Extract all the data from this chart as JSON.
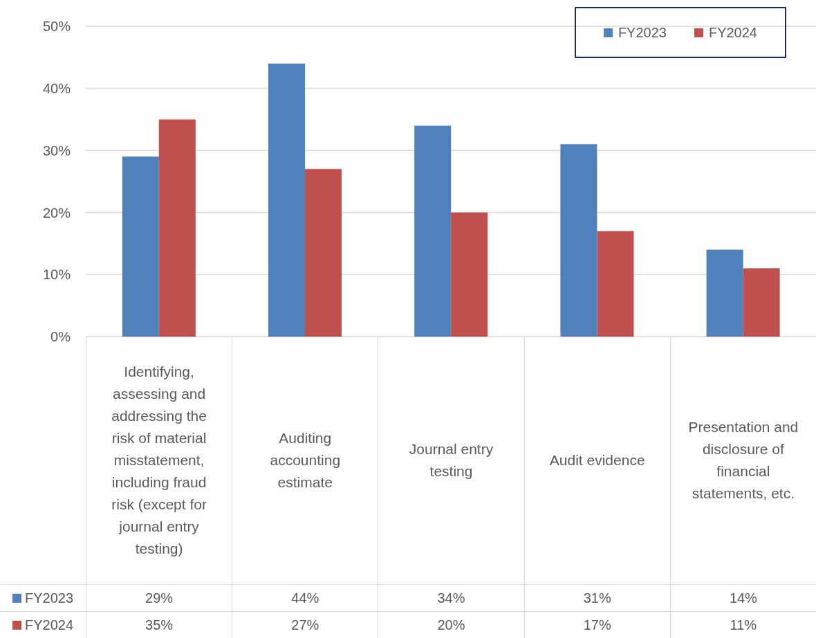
{
  "chart_data": {
    "type": "bar",
    "categories": [
      "Identifying, assessing and addressing the risk of material misstatement, including fraud risk (except for journal entry testing)",
      "Auditing accounting estimate",
      "Journal entry testing",
      "Audit evidence",
      "Presentation and disclosure of financial statements, etc."
    ],
    "series": [
      {
        "name": "FY2023",
        "color": "#4f81bd",
        "values": [
          29,
          44,
          34,
          31,
          14
        ],
        "value_labels": [
          "29%",
          "44%",
          "34%",
          "31%",
          "14%"
        ]
      },
      {
        "name": "FY2024",
        "color": "#c0504d",
        "values": [
          35,
          27,
          20,
          17,
          11
        ],
        "value_labels": [
          "35%",
          "27%",
          "20%",
          "17%",
          "11%"
        ]
      }
    ],
    "ylim": [
      0,
      50
    ],
    "yticks": [
      {
        "value": 0,
        "label": "0%"
      },
      {
        "value": 10,
        "label": "10%"
      },
      {
        "value": 20,
        "label": "20%"
      },
      {
        "value": 30,
        "label": "30%"
      },
      {
        "value": 40,
        "label": "40%"
      },
      {
        "value": 50,
        "label": "50%"
      }
    ],
    "grid": "y",
    "legend": "top right"
  }
}
